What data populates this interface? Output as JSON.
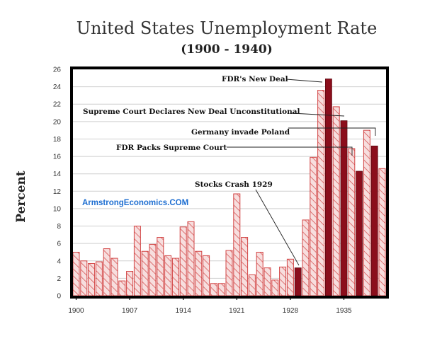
{
  "chart_data": {
    "type": "bar",
    "title": "United States Unemployment Rate",
    "subtitle": "(1900 - 1940)",
    "ylabel": "Percent",
    "xlabel": "",
    "ylim": [
      0,
      26
    ],
    "yticks": [
      0,
      2,
      4,
      6,
      8,
      10,
      12,
      14,
      16,
      18,
      20,
      22,
      24,
      26
    ],
    "xtick_labels": [
      "1900",
      "1907",
      "1914",
      "1921",
      "1928",
      "1935"
    ],
    "categories": [
      1900,
      1901,
      1902,
      1903,
      1904,
      1905,
      1906,
      1907,
      1908,
      1909,
      1910,
      1911,
      1912,
      1913,
      1914,
      1915,
      1916,
      1917,
      1918,
      1919,
      1920,
      1921,
      1922,
      1923,
      1924,
      1925,
      1926,
      1927,
      1928,
      1929,
      1930,
      1931,
      1932,
      1933,
      1934,
      1935,
      1936,
      1937,
      1938,
      1939,
      1940
    ],
    "values": [
      5.0,
      4.0,
      3.7,
      3.9,
      5.4,
      4.3,
      1.7,
      2.8,
      8.0,
      5.1,
      5.9,
      6.7,
      4.6,
      4.3,
      7.9,
      8.5,
      5.1,
      4.6,
      1.4,
      1.4,
      5.2,
      11.7,
      6.7,
      2.4,
      5.0,
      3.2,
      1.8,
      3.3,
      4.2,
      3.2,
      8.7,
      15.9,
      23.6,
      24.9,
      21.7,
      20.1,
      16.9,
      14.3,
      19.0,
      17.2,
      14.6
    ],
    "style": [
      "h",
      "h",
      "h",
      "h",
      "h",
      "h",
      "h",
      "h",
      "h",
      "h",
      "h",
      "h",
      "h",
      "h",
      "h",
      "h",
      "h",
      "h",
      "h",
      "h",
      "h",
      "h",
      "h",
      "h",
      "h",
      "h",
      "h",
      "h",
      "h",
      "s",
      "h",
      "h",
      "h",
      "s",
      "h",
      "s",
      "h",
      "s",
      "h",
      "s",
      "h"
    ],
    "colors": {
      "hatched_fill": "#f7dede",
      "hatched_line": "#d24545",
      "solid_fill": "#8b0e1c",
      "frame": "#000000"
    },
    "watermark": "ArmstrongEconomics.COM",
    "annotations": [
      {
        "text": "FDR's New Deal",
        "year": 1933
      },
      {
        "text": "Supreme Court Declares New Deal Unconstitutional",
        "year": 1935
      },
      {
        "text": "Germany invade Poland",
        "year": 1939
      },
      {
        "text": "FDR Packs Supreme Court",
        "year": 1937
      },
      {
        "text": "Stocks Crash 1929",
        "year": 1929
      }
    ]
  }
}
